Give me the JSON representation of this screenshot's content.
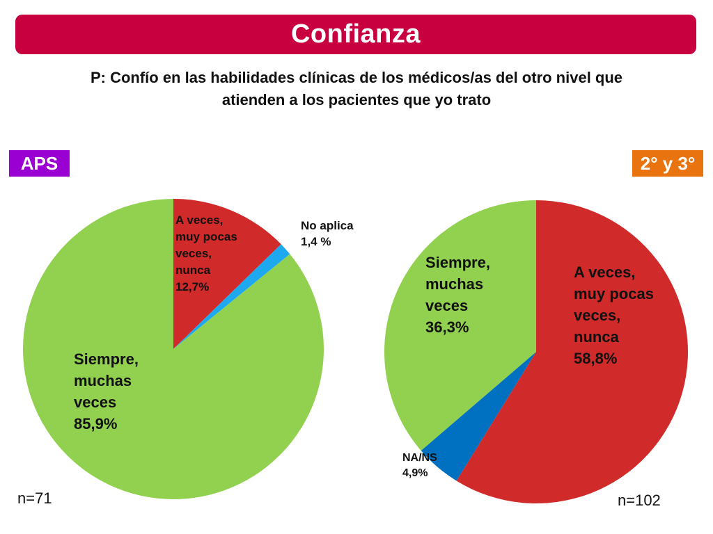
{
  "header": {
    "title": "Confianza"
  },
  "question": {
    "line1": "P: Confío en las habilidades clínicas de los médicos/as del otro nivel que",
    "line2": "atienden a los pacientes que yo trato"
  },
  "chart_data": [
    {
      "type": "pie",
      "group_label": "APS",
      "group_color": "#9b00d3",
      "n_label": "n=71",
      "slices": [
        {
          "label": [
            "A veces,",
            "muy pocas",
            "veces,",
            "nunca",
            "12,7%"
          ],
          "value": 12.7,
          "color": "#d02a2a"
        },
        {
          "label": [
            "No aplica",
            "1,4 %"
          ],
          "value": 1.4,
          "color": "#1ea8f0"
        },
        {
          "label": [
            "Siempre,",
            "muchas",
            "veces",
            "85,9%"
          ],
          "value": 85.9,
          "color": "#92d050"
        }
      ]
    },
    {
      "type": "pie",
      "group_label": "2° y 3°",
      "group_color": "#e8730f",
      "n_label": "n=102",
      "slices": [
        {
          "label": [
            "A veces,",
            "muy pocas",
            "veces,",
            "nunca",
            "58,8%"
          ],
          "value": 58.8,
          "color": "#d02a2a"
        },
        {
          "label": [
            "NA/NS",
            "4,9%"
          ],
          "value": 4.9,
          "color": "#0070c0"
        },
        {
          "label": [
            "Siempre,",
            "muchas",
            "veces",
            "36,3%"
          ],
          "value": 36.3,
          "color": "#92d050"
        }
      ]
    }
  ]
}
